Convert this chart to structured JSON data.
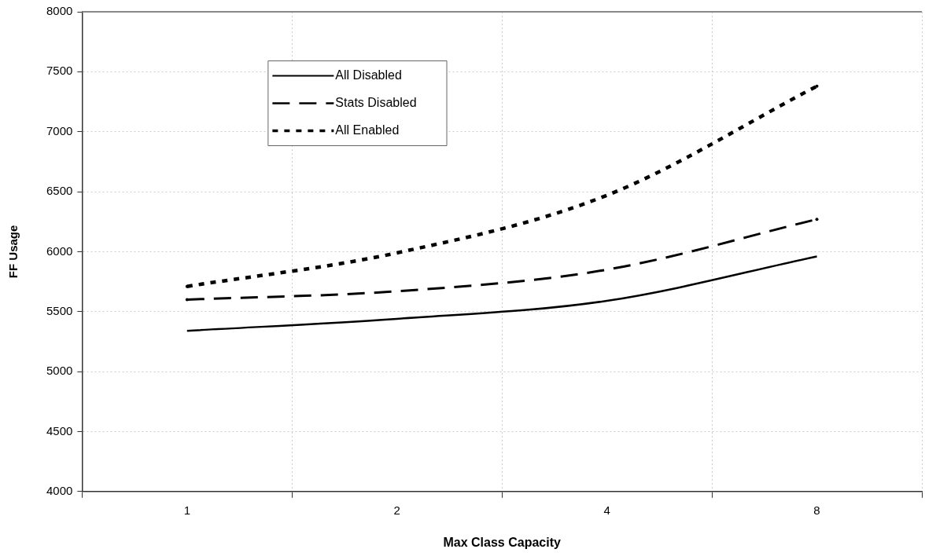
{
  "chart_data": {
    "type": "line",
    "xlabel": "Max Class Capacity",
    "ylabel": "FF Usage",
    "categories": [
      "1",
      "2",
      "4",
      "8"
    ],
    "series": [
      {
        "name": "All Disabled",
        "color": "#000000",
        "line_style": "solid",
        "values": [
          5340,
          5440,
          5590,
          5960
        ]
      },
      {
        "name": "Stats Disabled",
        "color": "#000000",
        "line_style": "dashed",
        "values": [
          5600,
          5670,
          5850,
          6270
        ]
      },
      {
        "name": "All Enabled",
        "color": "#000000",
        "line_style": "dotted",
        "values": [
          5710,
          5990,
          6470,
          7380
        ]
      }
    ],
    "ylim": [
      4000,
      8000
    ],
    "yticks": [
      4000,
      4500,
      5000,
      5500,
      6000,
      6500,
      7000,
      7500,
      8000
    ],
    "grid": true,
    "legend": "top left",
    "marker": "none"
  }
}
